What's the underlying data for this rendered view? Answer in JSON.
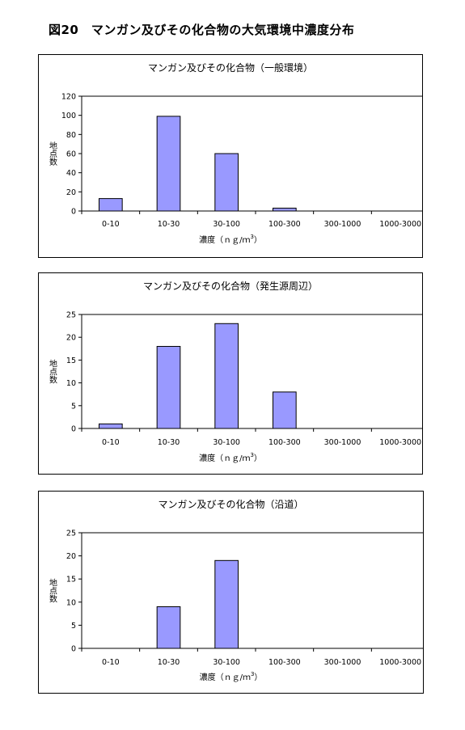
{
  "title": "図20　マンガン及びその化合物の大気環境中濃度分布",
  "colors": {
    "bar_fill": "#9999ff",
    "bar_stroke": "#000000"
  },
  "chart_data": [
    {
      "type": "bar",
      "title": "マンガン及びその化合物（一般環境）",
      "categories": [
        "0-10",
        "10-30",
        "30-100",
        "100-300",
        "300-1000",
        "1000-3000"
      ],
      "values": [
        13,
        99,
        60,
        3,
        0,
        0
      ],
      "xlabel": "濃度（ｎｇ/ｍ",
      "xlabel_sup": "3",
      "xlabel_end": "）",
      "ylabel": "地点数",
      "ylim": [
        0,
        120
      ],
      "yticks": [
        0,
        20,
        40,
        60,
        80,
        100,
        120
      ],
      "grid": false,
      "legend": "none"
    },
    {
      "type": "bar",
      "title": "マンガン及びその化合物（発生源周辺）",
      "categories": [
        "0-10",
        "10-30",
        "30-100",
        "100-300",
        "300-1000",
        "1000-3000"
      ],
      "values": [
        1,
        18,
        23,
        8,
        0,
        0
      ],
      "xlabel": "濃度（ｎｇ/ｍ",
      "xlabel_sup": "3",
      "xlabel_end": "）",
      "ylabel": "地点数",
      "ylim": [
        0,
        25
      ],
      "yticks": [
        0,
        5,
        10,
        15,
        20,
        25
      ],
      "grid": false,
      "legend": "none"
    },
    {
      "type": "bar",
      "title": "マンガン及びその化合物（沿道）",
      "categories": [
        "0-10",
        "10-30",
        "30-100",
        "100-300",
        "300-1000",
        "1000-3000"
      ],
      "values": [
        0,
        9,
        19,
        0,
        0,
        0
      ],
      "xlabel": "濃度（ｎｇ/ｍ",
      "xlabel_sup": "3",
      "xlabel_end": "）",
      "ylabel": "地点数",
      "ylim": [
        0,
        25
      ],
      "yticks": [
        0,
        5,
        10,
        15,
        20,
        25
      ],
      "grid": false,
      "legend": "none"
    }
  ]
}
